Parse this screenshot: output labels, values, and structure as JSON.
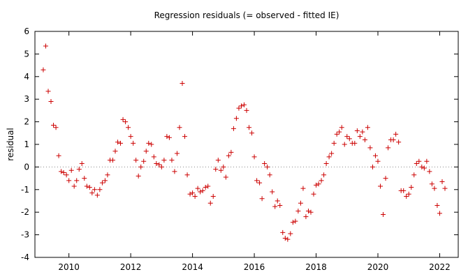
{
  "chart_data": {
    "type": "scatter",
    "title": "Regression residuals (= observed - fitted IE)",
    "xlabel": "",
    "ylabel": "residual",
    "xlim": [
      2008.9,
      2022.6
    ],
    "ylim": [
      -4,
      6
    ],
    "xticks": [
      2010,
      2012,
      2014,
      2016,
      2018,
      2020,
      2022
    ],
    "yticks": [
      -4,
      -3,
      -2,
      -1,
      0,
      1,
      2,
      3,
      4,
      5,
      6
    ],
    "zero_line": true,
    "grid": false,
    "marker": "+",
    "colors": {
      "points": "#cc0000",
      "zero_line": "#888888",
      "axes": "#000000"
    },
    "points": [
      [
        2009.17,
        4.3
      ],
      [
        2009.25,
        5.35
      ],
      [
        2009.33,
        3.35
      ],
      [
        2009.42,
        2.9
      ],
      [
        2009.5,
        1.85
      ],
      [
        2009.58,
        1.75
      ],
      [
        2009.67,
        0.5
      ],
      [
        2009.75,
        -0.2
      ],
      [
        2009.83,
        -0.25
      ],
      [
        2009.92,
        -0.35
      ],
      [
        2010.0,
        -0.6
      ],
      [
        2010.08,
        -0.15
      ],
      [
        2010.17,
        -0.85
      ],
      [
        2010.25,
        -0.6
      ],
      [
        2010.33,
        -0.1
      ],
      [
        2010.42,
        0.15
      ],
      [
        2010.5,
        -0.5
      ],
      [
        2010.58,
        -0.85
      ],
      [
        2010.67,
        -0.9
      ],
      [
        2010.75,
        -1.15
      ],
      [
        2010.83,
        -1.0
      ],
      [
        2010.92,
        -1.25
      ],
      [
        2011.0,
        -1.0
      ],
      [
        2011.08,
        -0.7
      ],
      [
        2011.17,
        -0.6
      ],
      [
        2011.25,
        -0.35
      ],
      [
        2011.33,
        0.3
      ],
      [
        2011.42,
        0.3
      ],
      [
        2011.5,
        0.7
      ],
      [
        2011.58,
        1.1
      ],
      [
        2011.67,
        1.05
      ],
      [
        2011.75,
        2.1
      ],
      [
        2011.83,
        2.0
      ],
      [
        2011.92,
        1.75
      ],
      [
        2012.0,
        1.35
      ],
      [
        2012.08,
        1.05
      ],
      [
        2012.17,
        0.3
      ],
      [
        2012.25,
        -0.4
      ],
      [
        2012.33,
        0.0
      ],
      [
        2012.42,
        0.25
      ],
      [
        2012.5,
        0.7
      ],
      [
        2012.58,
        1.05
      ],
      [
        2012.67,
        1.0
      ],
      [
        2012.75,
        0.45
      ],
      [
        2012.83,
        0.15
      ],
      [
        2012.92,
        0.1
      ],
      [
        2013.0,
        0.0
      ],
      [
        2013.08,
        0.3
      ],
      [
        2013.17,
        1.35
      ],
      [
        2013.25,
        1.3
      ],
      [
        2013.33,
        0.3
      ],
      [
        2013.42,
        -0.2
      ],
      [
        2013.5,
        0.6
      ],
      [
        2013.58,
        1.75
      ],
      [
        2013.67,
        3.7
      ],
      [
        2013.75,
        1.35
      ],
      [
        2013.83,
        -0.35
      ],
      [
        2013.92,
        -1.2
      ],
      [
        2014.0,
        -1.15
      ],
      [
        2014.08,
        -1.3
      ],
      [
        2014.17,
        -0.95
      ],
      [
        2014.25,
        -1.1
      ],
      [
        2014.33,
        -1.05
      ],
      [
        2014.42,
        -0.9
      ],
      [
        2014.5,
        -0.85
      ],
      [
        2014.58,
        -1.6
      ],
      [
        2014.67,
        -1.3
      ],
      [
        2014.75,
        -0.1
      ],
      [
        2014.83,
        0.3
      ],
      [
        2014.92,
        -0.15
      ],
      [
        2015.0,
        0.0
      ],
      [
        2015.08,
        -0.45
      ],
      [
        2015.17,
        0.5
      ],
      [
        2015.25,
        0.65
      ],
      [
        2015.33,
        1.7
      ],
      [
        2015.42,
        2.15
      ],
      [
        2015.5,
        2.6
      ],
      [
        2015.58,
        2.7
      ],
      [
        2015.67,
        2.75
      ],
      [
        2015.75,
        2.5
      ],
      [
        2015.83,
        1.75
      ],
      [
        2015.92,
        1.5
      ],
      [
        2016.0,
        0.45
      ],
      [
        2016.08,
        -0.6
      ],
      [
        2016.17,
        -0.7
      ],
      [
        2016.25,
        -1.4
      ],
      [
        2016.33,
        0.15
      ],
      [
        2016.42,
        0.0
      ],
      [
        2016.5,
        -0.35
      ],
      [
        2016.58,
        -1.1
      ],
      [
        2016.67,
        -1.75
      ],
      [
        2016.75,
        -1.5
      ],
      [
        2016.83,
        -1.7
      ],
      [
        2016.92,
        -2.9
      ],
      [
        2017.0,
        -3.15
      ],
      [
        2017.08,
        -3.2
      ],
      [
        2017.17,
        -2.95
      ],
      [
        2017.25,
        -2.45
      ],
      [
        2017.33,
        -2.4
      ],
      [
        2017.42,
        -1.95
      ],
      [
        2017.5,
        -1.6
      ],
      [
        2017.58,
        -0.95
      ],
      [
        2017.67,
        -2.2
      ],
      [
        2017.75,
        -1.95
      ],
      [
        2017.83,
        -2.0
      ],
      [
        2017.92,
        -1.2
      ],
      [
        2018.0,
        -0.8
      ],
      [
        2018.08,
        -0.75
      ],
      [
        2018.17,
        -0.6
      ],
      [
        2018.25,
        -0.35
      ],
      [
        2018.33,
        0.15
      ],
      [
        2018.42,
        0.45
      ],
      [
        2018.5,
        0.6
      ],
      [
        2018.58,
        1.05
      ],
      [
        2018.67,
        1.45
      ],
      [
        2018.75,
        1.55
      ],
      [
        2018.83,
        1.75
      ],
      [
        2018.92,
        1.0
      ],
      [
        2019.0,
        1.35
      ],
      [
        2019.08,
        1.25
      ],
      [
        2019.17,
        1.05
      ],
      [
        2019.25,
        1.05
      ],
      [
        2019.33,
        1.6
      ],
      [
        2019.42,
        1.35
      ],
      [
        2019.5,
        1.55
      ],
      [
        2019.58,
        1.2
      ],
      [
        2019.67,
        1.75
      ],
      [
        2019.75,
        0.85
      ],
      [
        2019.83,
        0.0
      ],
      [
        2019.92,
        0.5
      ],
      [
        2020.0,
        0.25
      ],
      [
        2020.08,
        -0.85
      ],
      [
        2020.17,
        -2.1
      ],
      [
        2020.25,
        -0.5
      ],
      [
        2020.33,
        0.85
      ],
      [
        2020.42,
        1.2
      ],
      [
        2020.5,
        1.2
      ],
      [
        2020.58,
        1.45
      ],
      [
        2020.67,
        1.1
      ],
      [
        2020.75,
        -1.05
      ],
      [
        2020.83,
        -1.05
      ],
      [
        2020.92,
        -1.3
      ],
      [
        2021.0,
        -1.2
      ],
      [
        2021.08,
        -0.9
      ],
      [
        2021.17,
        -0.35
      ],
      [
        2021.25,
        0.15
      ],
      [
        2021.33,
        0.25
      ],
      [
        2021.42,
        0.0
      ],
      [
        2021.5,
        -0.05
      ],
      [
        2021.58,
        0.25
      ],
      [
        2021.67,
        -0.2
      ],
      [
        2021.75,
        -0.75
      ],
      [
        2021.83,
        -0.95
      ],
      [
        2021.92,
        -1.7
      ],
      [
        2022.0,
        -2.05
      ],
      [
        2022.08,
        -0.65
      ],
      [
        2022.17,
        -0.95
      ]
    ]
  }
}
